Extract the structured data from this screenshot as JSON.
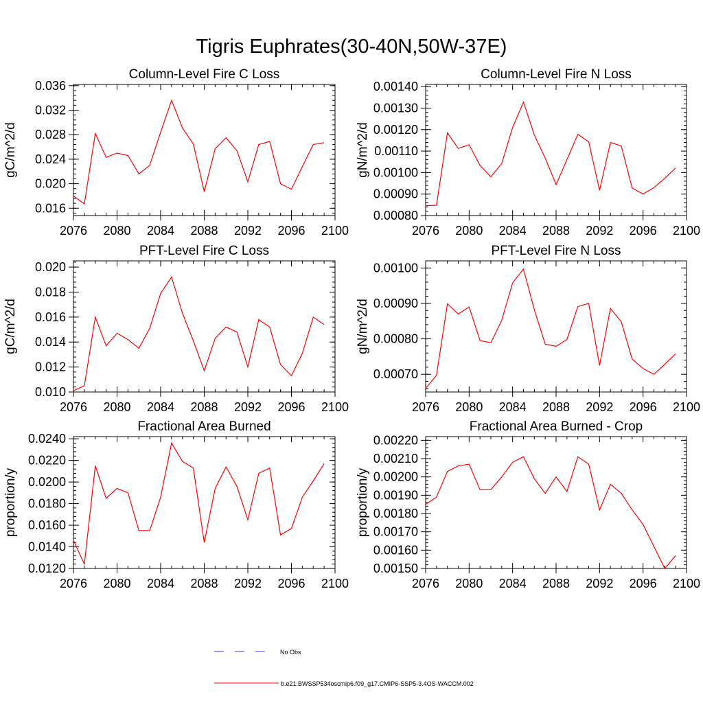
{
  "page_title": "Tigris Euphrates(30-40N,50W-37E)",
  "legend": {
    "items": [
      {
        "label": "No Obs",
        "color": "#3a3aff",
        "style": "dashed"
      },
      {
        "label": "b.e21.BWSSP534oscmip6.f09_g17.CMIP6-SSP5-3.4OS-WACCM.002",
        "color": "#ff0000",
        "style": "solid"
      }
    ]
  },
  "chart_data": [
    {
      "type": "line",
      "title": "Column-Level Fire C Loss",
      "ylabel": "gC/m^2/d",
      "xlim": [
        2076,
        2100
      ],
      "ylim": [
        0.0148,
        0.0362
      ],
      "xticks": [
        "2076",
        "2080",
        "2084",
        "2088",
        "2092",
        "2096",
        "2100"
      ],
      "yticks": [
        {
          "v": 0.016,
          "label": "0.016"
        },
        {
          "v": 0.02,
          "label": "0.020"
        },
        {
          "v": 0.024,
          "label": "0.024"
        },
        {
          "v": 0.028,
          "label": "0.028"
        },
        {
          "v": 0.032,
          "label": "0.032"
        },
        {
          "v": 0.036,
          "label": "0.036"
        }
      ],
      "x": [
        2076,
        2077,
        2078,
        2079,
        2080,
        2081,
        2082,
        2083,
        2084,
        2085,
        2086,
        2087,
        2088,
        2089,
        2090,
        2091,
        2092,
        2093,
        2094,
        2095,
        2096,
        2097,
        2098,
        2099
      ],
      "series": [
        {
          "color": "#ff0000",
          "values": [
            0.018,
            0.0167,
            0.0282,
            0.0243,
            0.025,
            0.0246,
            0.0216,
            0.023,
            0.0284,
            0.0336,
            0.0291,
            0.0265,
            0.0187,
            0.0257,
            0.0275,
            0.0254,
            0.0203,
            0.0264,
            0.0269,
            0.02,
            0.0191,
            0.0228,
            0.0264,
            0.0267
          ]
        }
      ]
    },
    {
      "type": "line",
      "title": "Column-Level Fire N Loss",
      "ylabel": "gN/m^2/d",
      "xlim": [
        2076,
        2100
      ],
      "ylim": [
        0.0008,
        0.00141
      ],
      "xticks": [
        "2076",
        "2080",
        "2084",
        "2088",
        "2092",
        "2096",
        "2100"
      ],
      "yticks": [
        {
          "v": 0.0008,
          "label": "0.00080"
        },
        {
          "v": 0.0009,
          "label": "0.00090"
        },
        {
          "v": 0.001,
          "label": "0.00100"
        },
        {
          "v": 0.0011,
          "label": "0.00110"
        },
        {
          "v": 0.0012,
          "label": "0.00120"
        },
        {
          "v": 0.0013,
          "label": "0.00130"
        },
        {
          "v": 0.0014,
          "label": "0.00140"
        }
      ],
      "x": [
        2076,
        2077,
        2078,
        2079,
        2080,
        2081,
        2082,
        2083,
        2084,
        2085,
        2086,
        2087,
        2088,
        2089,
        2090,
        2091,
        2092,
        2093,
        2094,
        2095,
        2096,
        2097,
        2098,
        2099
      ],
      "series": [
        {
          "color": "#ff0000",
          "values": [
            0.000846,
            0.000848,
            0.001185,
            0.001112,
            0.00113,
            0.001033,
            0.00098,
            0.001042,
            0.00121,
            0.001328,
            0.001175,
            0.001067,
            0.000944,
            0.00106,
            0.001178,
            0.001143,
            0.000918,
            0.00114,
            0.001124,
            0.000928,
            0.0009,
            0.00093,
            0.000973,
            0.001022
          ]
        }
      ]
    },
    {
      "type": "line",
      "title": "PFT-Level Fire C Loss",
      "ylabel": "gC/m^2/d",
      "xlim": [
        2076,
        2100
      ],
      "ylim": [
        0.01,
        0.0205
      ],
      "xticks": [
        "2076",
        "2080",
        "2084",
        "2088",
        "2092",
        "2096",
        "2100"
      ],
      "yticks": [
        {
          "v": 0.01,
          "label": "0.010"
        },
        {
          "v": 0.012,
          "label": "0.012"
        },
        {
          "v": 0.014,
          "label": "0.014"
        },
        {
          "v": 0.016,
          "label": "0.016"
        },
        {
          "v": 0.018,
          "label": "0.018"
        },
        {
          "v": 0.02,
          "label": "0.020"
        }
      ],
      "x": [
        2076,
        2077,
        2078,
        2079,
        2080,
        2081,
        2082,
        2083,
        2084,
        2085,
        2086,
        2087,
        2088,
        2089,
        2090,
        2091,
        2092,
        2093,
        2094,
        2095,
        2096,
        2097,
        2098,
        2099
      ],
      "series": [
        {
          "color": "#ff0000",
          "values": [
            0.0101,
            0.0105,
            0.016,
            0.0137,
            0.0147,
            0.0142,
            0.0135,
            0.0151,
            0.0179,
            0.0192,
            0.0163,
            0.0141,
            0.0117,
            0.0143,
            0.0152,
            0.0148,
            0.012,
            0.0158,
            0.0152,
            0.0122,
            0.0113,
            0.0131,
            0.016,
            0.0154
          ]
        }
      ]
    },
    {
      "type": "line",
      "title": "PFT-Level Fire N Loss",
      "ylabel": "gN/m^2/d",
      "xlim": [
        2076,
        2100
      ],
      "ylim": [
        0.00065,
        0.00102
      ],
      "xticks": [
        "2076",
        "2080",
        "2084",
        "2088",
        "2092",
        "2096",
        "2100"
      ],
      "yticks": [
        {
          "v": 0.0007,
          "label": "0.00070"
        },
        {
          "v": 0.0008,
          "label": "0.00080"
        },
        {
          "v": 0.0009,
          "label": "0.00090"
        },
        {
          "v": 0.001,
          "label": "0.00100"
        }
      ],
      "x": [
        2076,
        2077,
        2078,
        2079,
        2080,
        2081,
        2082,
        2083,
        2084,
        2085,
        2086,
        2087,
        2088,
        2089,
        2090,
        2091,
        2092,
        2093,
        2094,
        2095,
        2096,
        2097,
        2098,
        2099
      ],
      "series": [
        {
          "color": "#ff0000",
          "values": [
            0.00066,
            0.000697,
            0.000899,
            0.00087,
            0.00089,
            0.000795,
            0.000789,
            0.000852,
            0.000958,
            0.000997,
            0.000882,
            0.000785,
            0.000779,
            0.000798,
            0.000891,
            0.0009,
            0.000725,
            0.000886,
            0.000848,
            0.000743,
            0.000716,
            0.0007,
            0.000728,
            0.000758
          ]
        }
      ]
    },
    {
      "type": "line",
      "title": "Fractional Area Burned",
      "ylabel": "proportion/y",
      "xlim": [
        2076,
        2100
      ],
      "ylim": [
        0.012,
        0.0242
      ],
      "xticks": [
        "2076",
        "2080",
        "2084",
        "2088",
        "2092",
        "2096",
        "2100"
      ],
      "yticks": [
        {
          "v": 0.012,
          "label": "0.0120"
        },
        {
          "v": 0.014,
          "label": "0.0140"
        },
        {
          "v": 0.016,
          "label": "0.0160"
        },
        {
          "v": 0.018,
          "label": "0.0180"
        },
        {
          "v": 0.02,
          "label": "0.0200"
        },
        {
          "v": 0.022,
          "label": "0.0220"
        },
        {
          "v": 0.024,
          "label": "0.0240"
        }
      ],
      "x": [
        2076,
        2077,
        2078,
        2079,
        2080,
        2081,
        2082,
        2083,
        2084,
        2085,
        2086,
        2087,
        2088,
        2089,
        2090,
        2091,
        2092,
        2093,
        2094,
        2095,
        2096,
        2097,
        2098,
        2099
      ],
      "series": [
        {
          "color": "#ff0000",
          "values": [
            0.0146,
            0.0124,
            0.0215,
            0.0185,
            0.0194,
            0.019,
            0.0155,
            0.0155,
            0.0186,
            0.0236,
            0.0219,
            0.0213,
            0.0144,
            0.0194,
            0.0214,
            0.0196,
            0.0165,
            0.0208,
            0.0213,
            0.0151,
            0.0157,
            0.0186,
            0.0201,
            0.0217
          ]
        }
      ]
    },
    {
      "type": "line",
      "title": "Fractional Area Burned - Crop",
      "ylabel": "proportion/y",
      "xlim": [
        2076,
        2100
      ],
      "ylim": [
        0.0015,
        0.00222
      ],
      "xticks": [
        "2076",
        "2080",
        "2084",
        "2088",
        "2092",
        "2096",
        "2100"
      ],
      "yticks": [
        {
          "v": 0.0015,
          "label": "0.00150"
        },
        {
          "v": 0.0016,
          "label": "0.00160"
        },
        {
          "v": 0.0017,
          "label": "0.00170"
        },
        {
          "v": 0.0018,
          "label": "0.00180"
        },
        {
          "v": 0.0019,
          "label": "0.00190"
        },
        {
          "v": 0.002,
          "label": "0.00200"
        },
        {
          "v": 0.0021,
          "label": "0.00210"
        },
        {
          "v": 0.0022,
          "label": "0.00220"
        }
      ],
      "x": [
        2076,
        2077,
        2078,
        2079,
        2080,
        2081,
        2082,
        2083,
        2084,
        2085,
        2086,
        2087,
        2088,
        2089,
        2090,
        2091,
        2092,
        2093,
        2094,
        2095,
        2096,
        2097,
        2098,
        2099
      ],
      "series": [
        {
          "color": "#ff0000",
          "values": [
            0.00185,
            0.00189,
            0.00203,
            0.00206,
            0.00207,
            0.00193,
            0.00193,
            0.002,
            0.00208,
            0.00211,
            0.00199,
            0.00191,
            0.002,
            0.00192,
            0.00211,
            0.00207,
            0.00182,
            0.00196,
            0.00191,
            0.00182,
            0.00174,
            0.00162,
            0.0015,
            0.00157
          ]
        }
      ]
    }
  ]
}
